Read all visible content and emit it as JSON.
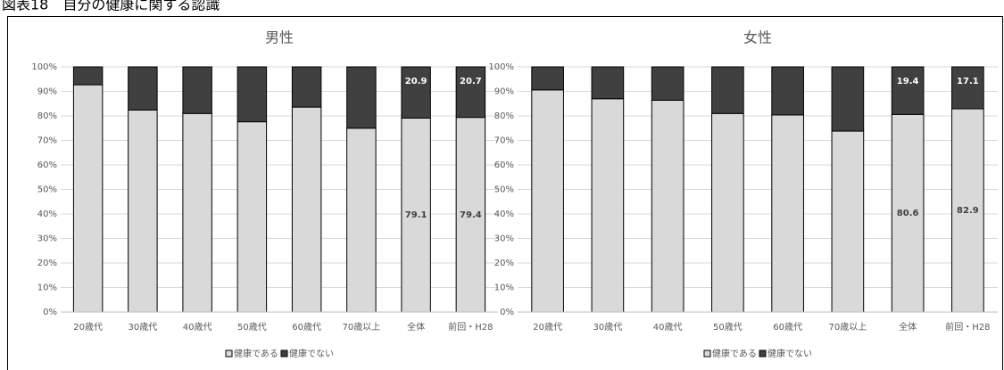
{
  "title": "図表18　自分の健康に関する認識",
  "chart_data": [
    {
      "type": "stacked_bar",
      "title": "男性",
      "categories": [
        "20歳代",
        "30歳代",
        "40歳代",
        "50歳代",
        "60歳代",
        "70歳以上",
        "全体",
        "前回・H28"
      ],
      "series": [
        {
          "name": "健康である",
          "color": "#d9d9d9",
          "values": [
            92.7,
            82.4,
            81.0,
            77.6,
            83.6,
            75.0,
            79.1,
            79.4
          ]
        },
        {
          "name": "健康でない",
          "color": "#404040",
          "values": [
            7.3,
            17.6,
            19.0,
            22.4,
            16.4,
            25.0,
            20.9,
            20.7
          ]
        }
      ],
      "show_labels": [
        false,
        false,
        false,
        false,
        false,
        false,
        true,
        true
      ],
      "ylim": [
        0,
        100
      ],
      "yticks": [
        {
          "value": 0,
          "label": "0%"
        },
        {
          "value": 10,
          "label": "10%"
        },
        {
          "value": 20,
          "label": "20%"
        },
        {
          "value": 30,
          "label": "30%"
        },
        {
          "value": 40,
          "label": "40%"
        },
        {
          "value": 50,
          "label": "50%"
        },
        {
          "value": 60,
          "label": "60%"
        },
        {
          "value": 70,
          "label": "70%"
        },
        {
          "value": 80,
          "label": "80%"
        },
        {
          "value": 90,
          "label": "90%"
        },
        {
          "value": 100,
          "label": "100%"
        }
      ],
      "grid": true,
      "legend": "bottom"
    },
    {
      "type": "stacked_bar",
      "title": "女性",
      "categories": [
        "20歳代",
        "30歳代",
        "40歳代",
        "50歳代",
        "60歳代",
        "70歳以上",
        "全体",
        "前回・H28"
      ],
      "series": [
        {
          "name": "健康である",
          "color": "#d9d9d9",
          "values": [
            90.6,
            87.0,
            86.4,
            81.0,
            80.4,
            73.8,
            80.6,
            82.9
          ]
        },
        {
          "name": "健康でない",
          "color": "#404040",
          "values": [
            9.4,
            13.0,
            13.6,
            19.0,
            19.6,
            26.2,
            19.4,
            17.1
          ]
        }
      ],
      "show_labels": [
        false,
        false,
        false,
        false,
        false,
        false,
        true,
        true
      ],
      "ylim": [
        0,
        100
      ],
      "yticks": [
        {
          "value": 0,
          "label": "0%"
        },
        {
          "value": 10,
          "label": "10%"
        },
        {
          "value": 20,
          "label": "20%"
        },
        {
          "value": 30,
          "label": "30%"
        },
        {
          "value": 40,
          "label": "40%"
        },
        {
          "value": 50,
          "label": "50%"
        },
        {
          "value": 60,
          "label": "60%"
        },
        {
          "value": 70,
          "label": "70%"
        },
        {
          "value": 80,
          "label": "80%"
        },
        {
          "value": 90,
          "label": "90%"
        },
        {
          "value": 100,
          "label": "100%"
        }
      ],
      "grid": true,
      "legend": "bottom"
    }
  ]
}
